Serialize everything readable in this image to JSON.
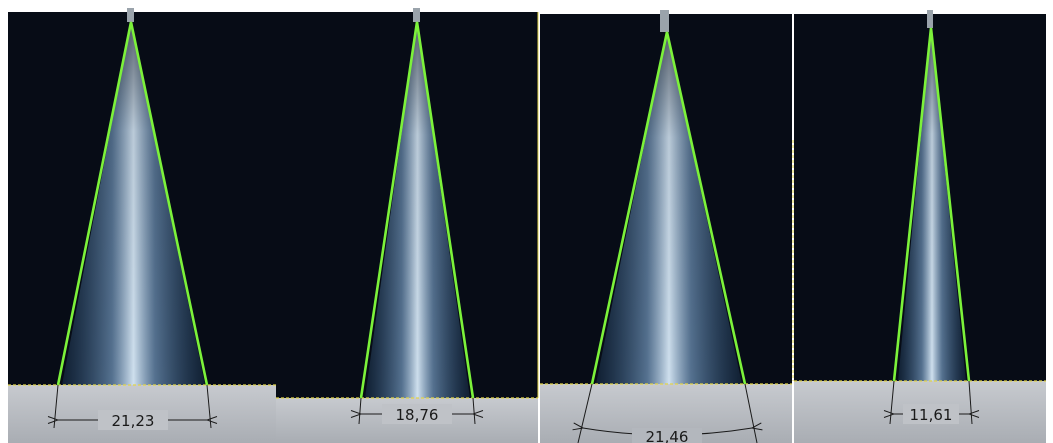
{
  "panels": [
    {
      "id": "panel-1",
      "angle_label": "21,23"
    },
    {
      "id": "panel-2",
      "angle_label": "18,76"
    },
    {
      "id": "panel-3",
      "angle_label": "21,46"
    },
    {
      "id": "panel-4",
      "angle_label": "11,61"
    }
  ],
  "colors": {
    "background": "#070c16",
    "spray_core": "#cfe0ee",
    "spray_edge": "#2f5a86",
    "cone_outline": "#7cf23a",
    "baseline": "#e2d44a",
    "nozzle": "#9aa3ab",
    "ground": "#b8bcc2",
    "dimension": "#1a1a1a"
  }
}
